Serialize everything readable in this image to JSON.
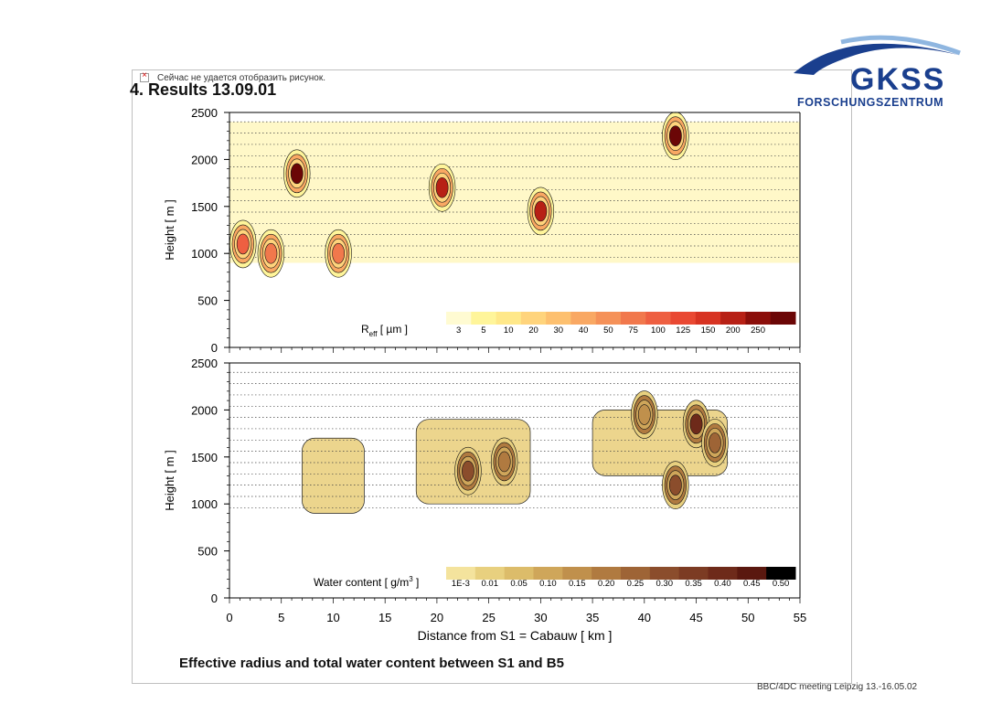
{
  "slide": {
    "title": "4. Results  13.09.01",
    "broken_image_message": "Сейчас не удается отобразить рисунок.",
    "caption": "Effective radius and total water content between S1 and B5",
    "footer": "BBC/4DC meeting Leipzig 13.-16.05.02"
  },
  "logo": {
    "name": "GKSS",
    "subtitle": "FORSCHUNGSZENTRUM",
    "colors": {
      "swoosh": "#1a3f8e",
      "text": "#1a3f8e"
    }
  },
  "chart_data": [
    {
      "type": "heatmap",
      "panel": "top",
      "ylabel": "Height [ m ]",
      "ylim": [
        0,
        2500
      ],
      "yticks": [
        0,
        500,
        1000,
        1500,
        2000,
        2500
      ],
      "xlim": [
        0,
        55
      ],
      "colorbar": {
        "label_main": "R",
        "label_sub": "eff",
        "label_unit": " [ µm ]",
        "levels": [
          "3",
          "5",
          "10",
          "20",
          "30",
          "40",
          "50",
          "75",
          "100",
          "125",
          "150",
          "200",
          "250"
        ],
        "colors": [
          "#fffbd2",
          "#fff59a",
          "#ffe889",
          "#ffd47c",
          "#fdc06f",
          "#f9a863",
          "#f59158",
          "#f1784c",
          "#ee5f41",
          "#e94832",
          "#d73322",
          "#b72015",
          "#8b0e0a",
          "#6b0606"
        ]
      },
      "features": [
        {
          "x": 1.3,
          "y": 1100,
          "value": 75
        },
        {
          "x": 4.0,
          "y": 1000,
          "value": 50
        },
        {
          "x": 6.5,
          "y": 1850,
          "value": 250
        },
        {
          "x": 10.5,
          "y": 1000,
          "value": 50
        },
        {
          "x": 20.5,
          "y": 1700,
          "value": 150
        },
        {
          "x": 30.0,
          "y": 1450,
          "value": 150
        },
        {
          "x": 43.0,
          "y": 2250,
          "value": 250
        }
      ]
    },
    {
      "type": "heatmap",
      "panel": "bottom",
      "ylabel": "Height [ m ]",
      "xlabel": "Distance from S1 = Cabauw [ km ]",
      "ylim": [
        0,
        2500
      ],
      "yticks": [
        0,
        500,
        1000,
        1500,
        2000,
        2500
      ],
      "xlim": [
        0,
        55
      ],
      "xticks": [
        0,
        5,
        10,
        15,
        20,
        25,
        30,
        35,
        40,
        45,
        50,
        55
      ],
      "colorbar": {
        "label_main": "Water content [ g/m",
        "label_sup": "3",
        "label_end": " ]",
        "levels": [
          "1E-3",
          "0.01",
          "0.05",
          "0.10",
          "0.15",
          "0.20",
          "0.25",
          "0.30",
          "0.35",
          "0.40",
          "0.45",
          "0.50"
        ],
        "colors": [
          "#f4e39d",
          "#e8d07f",
          "#dcbc6a",
          "#cfa65a",
          "#c0904c",
          "#b07a40",
          "#9e6436",
          "#8b4d2c",
          "#7c3b23",
          "#6e2a1a",
          "#5a180f",
          "#000000"
        ]
      },
      "features": [
        {
          "x": 23.0,
          "y": 1350,
          "value": 0.25
        },
        {
          "x": 26.5,
          "y": 1450,
          "value": 0.15
        },
        {
          "x": 40.0,
          "y": 1950,
          "value": 0.1
        },
        {
          "x": 43.0,
          "y": 1200,
          "value": 0.25
        },
        {
          "x": 45.0,
          "y": 1850,
          "value": 0.35
        },
        {
          "x": 46.8,
          "y": 1650,
          "value": 0.2
        }
      ]
    }
  ]
}
